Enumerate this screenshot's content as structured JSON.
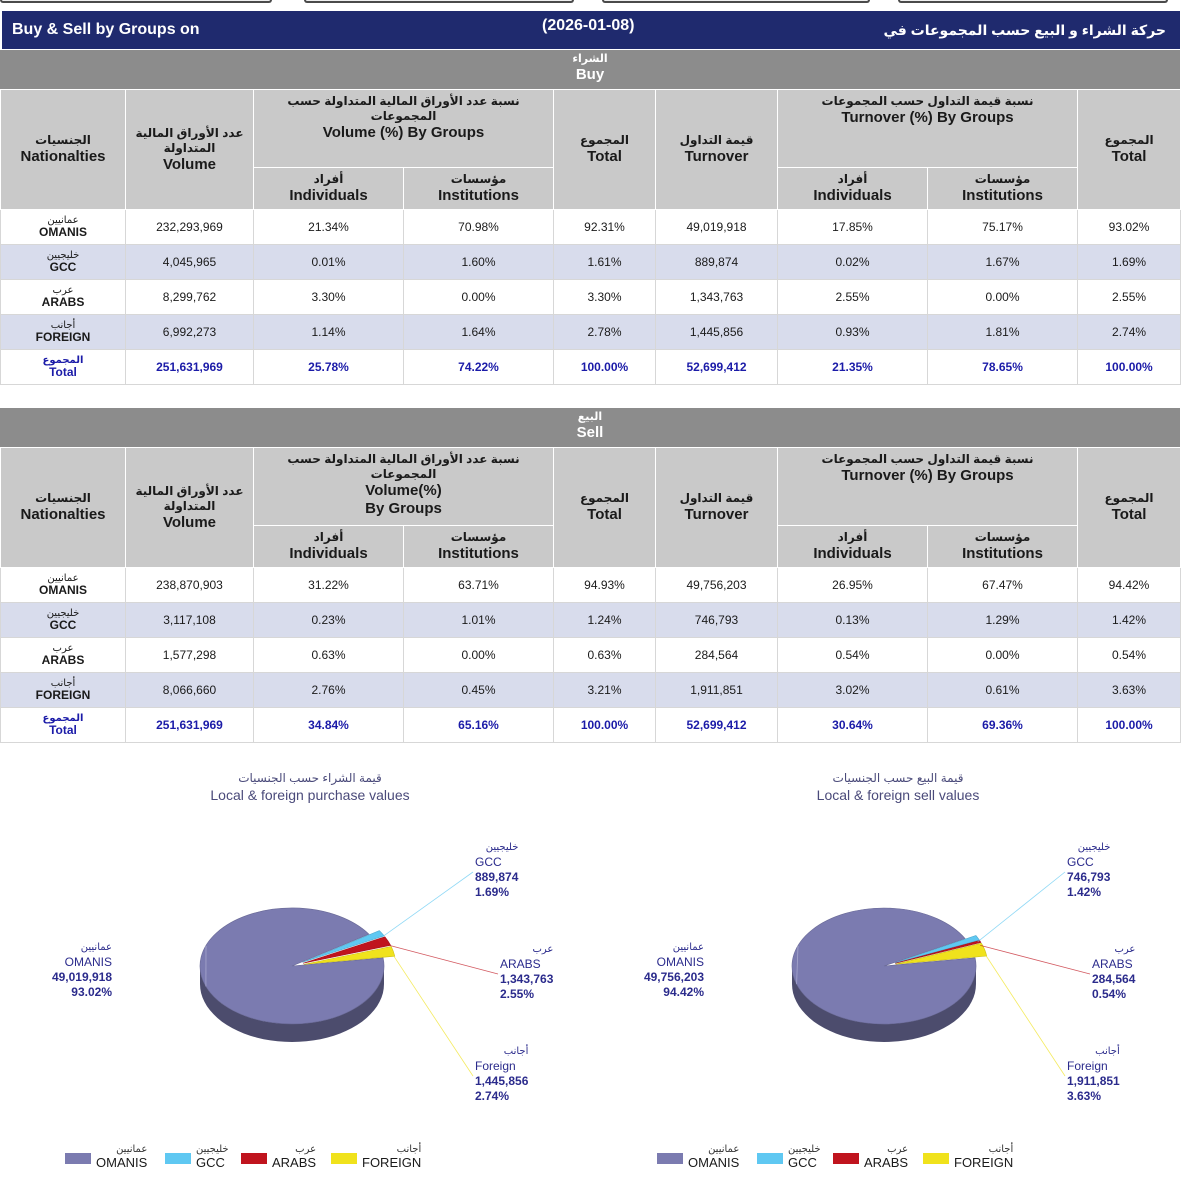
{
  "header": {
    "title_en": "Buy & Sell by Groups on",
    "date": "(2026-01-08)",
    "title_ar": "حركة الشراء و البيع حسب المجموعات في"
  },
  "buy": {
    "section_ar": "الشراء",
    "section_en": "Buy",
    "headers": {
      "nat_ar": "الجنسيات",
      "nat_en": "Nationalties",
      "vol_ar": "عدد الأوراق المالية المتداولة",
      "vol_en": "Volume",
      "volpct_ar": "نسبة عدد الأوراق المالية المتداولة حسب المجموعات",
      "volpct_en": "Volume (%) By Groups",
      "ind_ar": "أفراد",
      "ind_en": "Individuals",
      "inst_ar": "مؤسسات",
      "inst_en": "Institutions",
      "total_ar": "المجموع",
      "total_en": "Total",
      "turn_ar": "قيمة التداول",
      "turn_en": "Turnover",
      "turnpct_ar": "نسبة قيمة التداول حسب المجموعات",
      "turnpct_en": "Turnover (%) By Groups",
      "ind2_ar": "أفراد",
      "ind2_en": "Individuals",
      "inst2_ar": "مؤسسات",
      "inst2_en": "Institutions",
      "total2_ar": "المجموع",
      "total2_en": "Total"
    },
    "rows": [
      {
        "ar": "عمانيين",
        "en": "OMANIS",
        "vol": "232,293,969",
        "vi": "21.34%",
        "vn": "70.98%",
        "vt": "92.31%",
        "turn": "49,019,918",
        "ti": "17.85%",
        "tn": "75.17%",
        "tt": "93.02%"
      },
      {
        "ar": "خليجيين",
        "en": "GCC",
        "vol": "4,045,965",
        "vi": "0.01%",
        "vn": "1.60%",
        "vt": "1.61%",
        "turn": "889,874",
        "ti": "0.02%",
        "tn": "1.67%",
        "tt": "1.69%"
      },
      {
        "ar": "عرب",
        "en": "ARABS",
        "vol": "8,299,762",
        "vi": "3.30%",
        "vn": "0.00%",
        "vt": "3.30%",
        "turn": "1,343,763",
        "ti": "2.55%",
        "tn": "0.00%",
        "tt": "2.55%"
      },
      {
        "ar": "أجانب",
        "en": "FOREIGN",
        "vol": "6,992,273",
        "vi": "1.14%",
        "vn": "1.64%",
        "vt": "2.78%",
        "turn": "1,445,856",
        "ti": "0.93%",
        "tn": "1.81%",
        "tt": "2.74%"
      },
      {
        "ar": "المجموع",
        "en": "Total",
        "vol": "251,631,969",
        "vi": "25.78%",
        "vn": "74.22%",
        "vt": "100.00%",
        "turn": "52,699,412",
        "ti": "21.35%",
        "tn": "78.65%",
        "tt": "100.00%"
      }
    ]
  },
  "sell": {
    "section_ar": "البيع",
    "section_en": "Sell",
    "headers": {
      "nat_ar": "الجنسيات",
      "nat_en": "Nationalties",
      "vol_ar": "عدد الأوراق المالية المتداولة",
      "vol_en": "Volume",
      "volpct_ar": "نسبة عدد الأوراق المالية المتداولة حسب المجموعات",
      "volpct_en": "Volume(%) By Groups",
      "ind_ar": "أفراد",
      "ind_en": "Individuals",
      "inst_ar": "مؤسسات",
      "inst_en": "Institutions",
      "total_ar": "المجموع",
      "total_en": "Total",
      "turn_ar": "قيمة التداول",
      "turn_en": "Turnover",
      "turnpct_ar": "نسبة قيمة التداول حسب المجموعات",
      "turnpct_en": "Turnover (%) By Groups",
      "ind2_ar": "أفراد",
      "ind2_en": "Individuals",
      "inst2_ar": "مؤسسات",
      "inst2_en": "Institutions",
      "total2_ar": "المجموع",
      "total2_en": "Total"
    },
    "rows": [
      {
        "ar": "عمانيين",
        "en": "OMANIS",
        "vol": "238,870,903",
        "vi": "31.22%",
        "vn": "63.71%",
        "vt": "94.93%",
        "turn": "49,756,203",
        "ti": "26.95%",
        "tn": "67.47%",
        "tt": "94.42%"
      },
      {
        "ar": "خليجيين",
        "en": "GCC",
        "vol": "3,117,108",
        "vi": "0.23%",
        "vn": "1.01%",
        "vt": "1.24%",
        "turn": "746,793",
        "ti": "0.13%",
        "tn": "1.29%",
        "tt": "1.42%"
      },
      {
        "ar": "عرب",
        "en": "ARABS",
        "vol": "1,577,298",
        "vi": "0.63%",
        "vn": "0.00%",
        "vt": "0.63%",
        "turn": "284,564",
        "ti": "0.54%",
        "tn": "0.00%",
        "tt": "0.54%"
      },
      {
        "ar": "أجانب",
        "en": "FOREIGN",
        "vol": "8,066,660",
        "vi": "2.76%",
        "vn": "0.45%",
        "vt": "3.21%",
        "turn": "1,911,851",
        "ti": "3.02%",
        "tn": "0.61%",
        "tt": "3.63%"
      },
      {
        "ar": "المجموع",
        "en": "Total",
        "vol": "251,631,969",
        "vi": "34.84%",
        "vn": "65.16%",
        "vt": "100.00%",
        "turn": "52,699,412",
        "ti": "30.64%",
        "tn": "69.36%",
        "tt": "100.00%"
      }
    ]
  },
  "colors": {
    "banner": "#1f2a6e",
    "omanis": "#7b7bb0",
    "gcc": "#5fc8f2",
    "arabs": "#c0141e",
    "foreign": "#f0e21c",
    "total_text": "#1b1ba8"
  },
  "chart_data": [
    {
      "type": "pie",
      "title_ar": "قيمة الشراء حسب الجنسيات",
      "title": "Local & foreign purchase values",
      "categories": [
        "OMANIS",
        "GCC",
        "ARABS",
        "FOREIGN"
      ],
      "values": [
        49019918,
        889874,
        1343763,
        1445856
      ],
      "labels": [
        {
          "ar": "عمانيين",
          "name": "OMANIS",
          "value": "49,019,918",
          "pct": "93.02%"
        },
        {
          "ar": "خليجيين",
          "name": "GCC",
          "value": "889,874",
          "pct": "1.69%"
        },
        {
          "ar": "عرب",
          "name": "ARABS",
          "value": "1,343,763",
          "pct": "2.55%"
        },
        {
          "ar": "أجانب",
          "name": "Foreign",
          "value": "1,445,856",
          "pct": "2.74%"
        }
      ],
      "legend": [
        {
          "ar": "عمانيين",
          "en": "OMANIS"
        },
        {
          "ar": "خليجيين",
          "en": "GCC"
        },
        {
          "ar": "عرب",
          "en": "ARABS"
        },
        {
          "ar": "أجانب",
          "en": "FOREIGN"
        }
      ],
      "legend_position": "bottom"
    },
    {
      "type": "pie",
      "title_ar": "قيمة البيع حسب الجنسيات",
      "title": "Local & foreign sell values",
      "categories": [
        "OMANIS",
        "GCC",
        "ARABS",
        "FOREIGN"
      ],
      "values": [
        49756203,
        746793,
        284564,
        1911851
      ],
      "labels": [
        {
          "ar": "عمانيين",
          "name": "OMANIS",
          "value": "49,756,203",
          "pct": "94.42%"
        },
        {
          "ar": "خليجيين",
          "name": "GCC",
          "value": "746,793",
          "pct": "1.42%"
        },
        {
          "ar": "عرب",
          "name": "ARABS",
          "value": "284,564",
          "pct": "0.54%"
        },
        {
          "ar": "أجانب",
          "name": "Foreign",
          "value": "1,911,851",
          "pct": "3.63%"
        }
      ],
      "legend": [
        {
          "ar": "عمانيين",
          "en": "OMANIS"
        },
        {
          "ar": "خليجيين",
          "en": "GCC"
        },
        {
          "ar": "عرب",
          "en": "ARABS"
        },
        {
          "ar": "أجانب",
          "en": "FOREIGN"
        }
      ],
      "legend_position": "bottom"
    }
  ]
}
